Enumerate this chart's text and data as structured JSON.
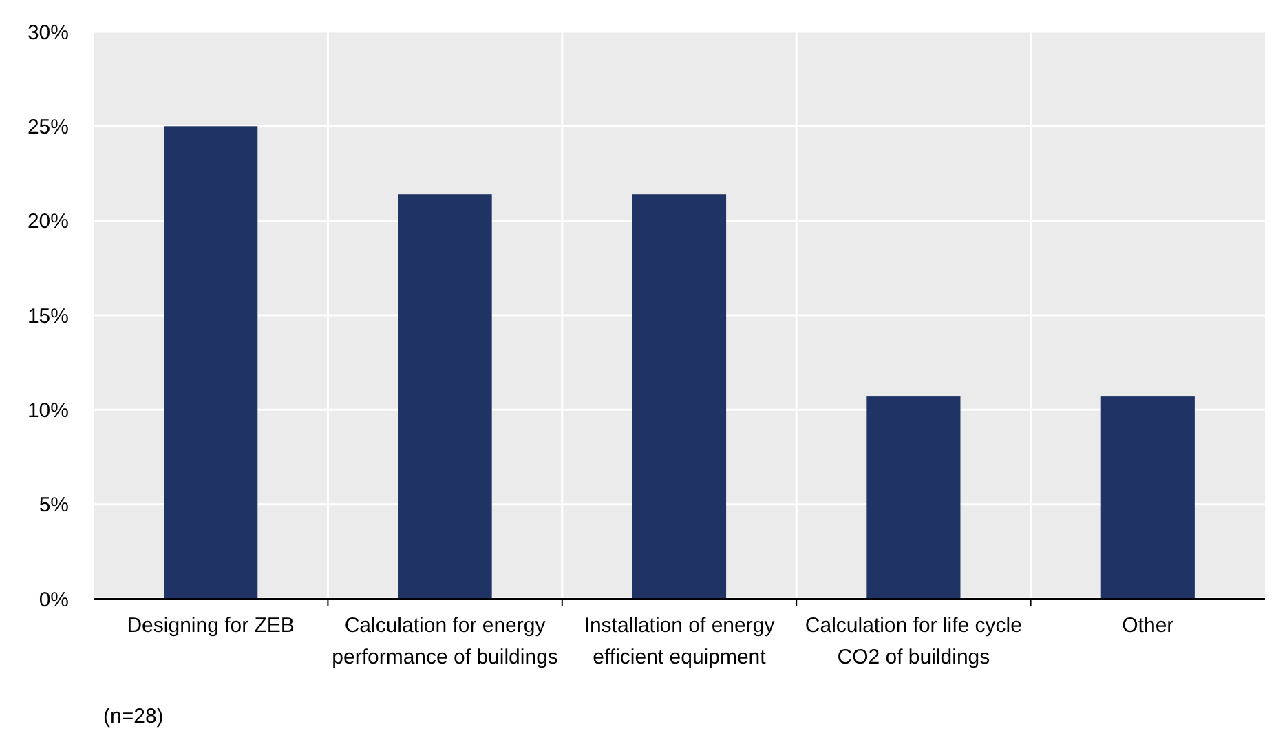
{
  "chart_data": {
    "type": "bar",
    "categories": [
      "Designing for ZEB",
      "Calculation for energy performance of buildings",
      "Installation of energy efficient equipment",
      "Calculation for life cycle CO2 of buildings",
      "Other"
    ],
    "values": [
      25,
      21.4,
      21.4,
      10.7,
      10.7
    ],
    "color": "#1f3464",
    "ylim": [
      0,
      30
    ],
    "yticks": [
      {
        "value": 0,
        "label": "0%"
      },
      {
        "value": 5,
        "label": "5%"
      },
      {
        "value": 10,
        "label": "10%"
      },
      {
        "value": 15,
        "label": "15%"
      },
      {
        "value": 20,
        "label": "20%"
      },
      {
        "value": 25,
        "label": "25%"
      },
      {
        "value": 30,
        "label": "30%"
      }
    ],
    "grid": true,
    "annotations": [
      "(n=28)"
    ]
  }
}
